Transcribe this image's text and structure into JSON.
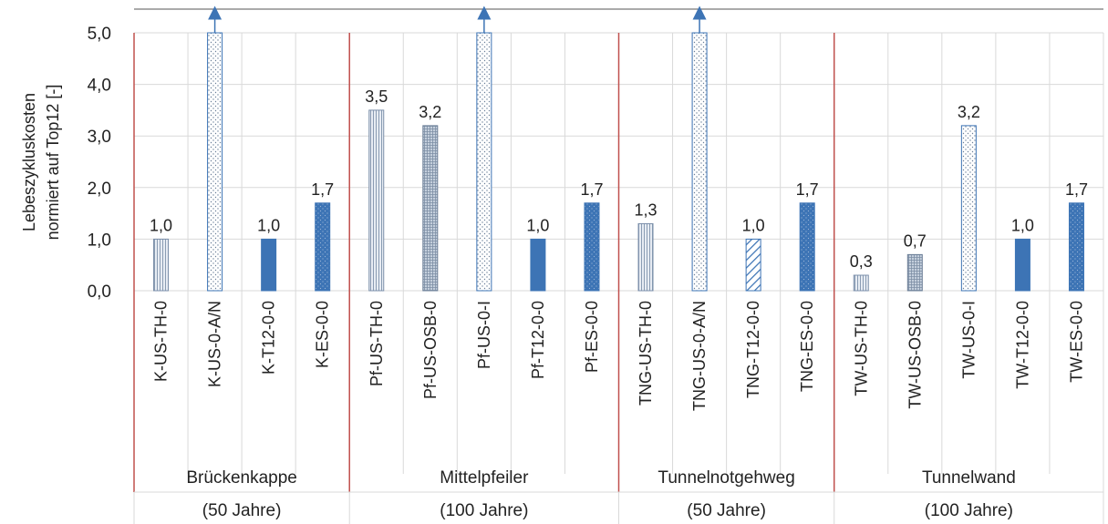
{
  "chart_data": {
    "type": "bar",
    "ylabel": [
      "Lebeszyklus­kosten",
      "normiert auf Top12 [-]"
    ],
    "ylim": [
      0,
      5
    ],
    "yticks": [
      "0,0",
      "1,0",
      "2,0",
      "3,0",
      "4,0",
      "5,0"
    ],
    "grid": true,
    "legend": "none",
    "groups": [
      {
        "label_line1": "Brückenkappe",
        "label_line2": "(50 Jahre)"
      },
      {
        "label_line1": "Mittelpfeiler",
        "label_line2": "(100 Jahre)"
      },
      {
        "label_line1": "Tunnelnotgehweg",
        "label_line2": "(50 Jahre)"
      },
      {
        "label_line1": "Tunnelwand",
        "label_line2": "(100 Jahre)"
      }
    ],
    "bars": [
      {
        "group": 0,
        "category": "K-US-TH-0",
        "value": 1.0,
        "label": "1,0",
        "pattern": "vlines"
      },
      {
        "group": 0,
        "category": "K-US-0-A/N",
        "value": 5.0,
        "label": "",
        "pattern": "dots",
        "overflow": true
      },
      {
        "group": 0,
        "category": "K-T12-0-0",
        "value": 1.0,
        "label": "1,0",
        "pattern": "solid"
      },
      {
        "group": 0,
        "category": "K-ES-0-0",
        "value": 1.7,
        "label": "1,7",
        "pattern": "soliddots"
      },
      {
        "group": 1,
        "category": "Pf-US-TH-0",
        "value": 3.5,
        "label": "3,5",
        "pattern": "vlines"
      },
      {
        "group": 1,
        "category": "Pf-US-OSB-0",
        "value": 3.2,
        "label": "3,2",
        "pattern": "grid"
      },
      {
        "group": 1,
        "category": "Pf-US-0-I",
        "value": 5.0,
        "label": "",
        "pattern": "dots",
        "overflow": true
      },
      {
        "group": 1,
        "category": "Pf-T12-0-0",
        "value": 1.0,
        "label": "1,0",
        "pattern": "solid"
      },
      {
        "group": 1,
        "category": "Pf-ES-0-0",
        "value": 1.7,
        "label": "1,7",
        "pattern": "soliddots"
      },
      {
        "group": 2,
        "category": "TNG-US-TH-0",
        "value": 1.3,
        "label": "1,3",
        "pattern": "vlines"
      },
      {
        "group": 2,
        "category": "TNG-US-0-A/N",
        "value": 5.0,
        "label": "",
        "pattern": "dots",
        "overflow": true
      },
      {
        "group": 2,
        "category": "TNG-T12-0-0",
        "value": 1.0,
        "label": "1,0",
        "pattern": "diag"
      },
      {
        "group": 2,
        "category": "TNG-ES-0-0",
        "value": 1.7,
        "label": "1,7",
        "pattern": "soliddots"
      },
      {
        "group": 3,
        "category": "TW-US-TH-0",
        "value": 0.3,
        "label": "0,3",
        "pattern": "vlines"
      },
      {
        "group": 3,
        "category": "TW-US-OSB-0",
        "value": 0.7,
        "label": "0,7",
        "pattern": "grid"
      },
      {
        "group": 3,
        "category": "TW-US-0-I",
        "value": 3.2,
        "label": "3,2",
        "pattern": "dots"
      },
      {
        "group": 3,
        "category": "TW-T12-0-0",
        "value": 1.0,
        "label": "1,0",
        "pattern": "solid"
      },
      {
        "group": 3,
        "category": "TW-ES-0-0",
        "value": 1.7,
        "label": "1,7",
        "pattern": "soliddots"
      }
    ],
    "colors": {
      "bar_blue": "#3d74b5",
      "bar_light": "#b9c7d8",
      "grid": "#d9d9d9",
      "separator": "#c0504d",
      "text": "#222222"
    }
  }
}
